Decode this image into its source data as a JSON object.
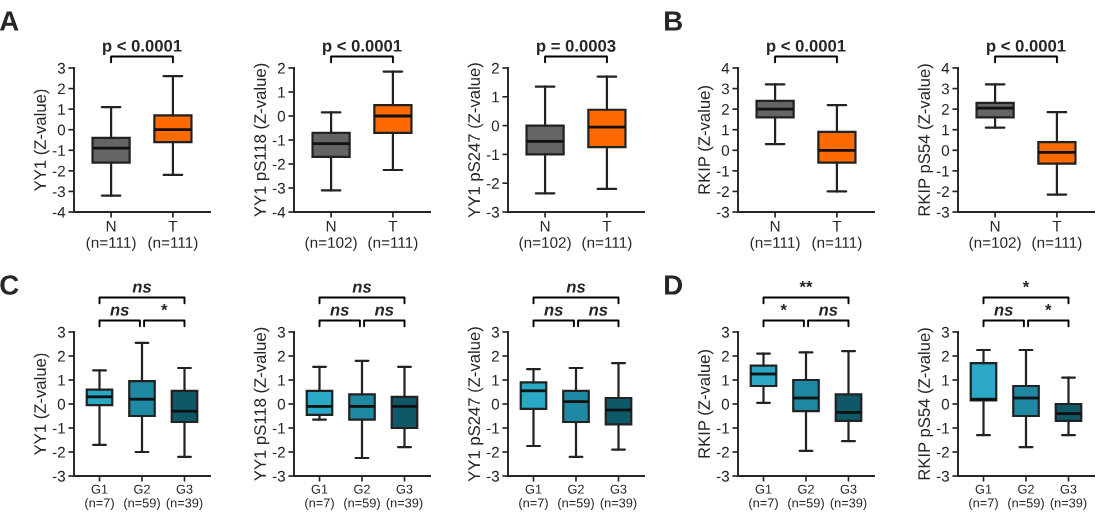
{
  "chart_data": [
    {
      "type": "box",
      "title": "A",
      "ylabel": "YY1 (Z-value)",
      "categories": [
        "N\n(n=111)",
        "T\n(n=111)"
      ],
      "colors": [
        "#646464",
        "#ff6a00"
      ],
      "ylim": [
        -4,
        3
      ],
      "yticks": [
        -4,
        -3,
        -2,
        -1,
        0,
        1,
        2,
        3
      ],
      "annotations": [
        "p < 0.0001"
      ],
      "boxes": [
        {
          "low": -3.2,
          "q1": -1.6,
          "median": -0.9,
          "q3": -0.4,
          "high": 1.1
        },
        {
          "low": -2.2,
          "q1": -0.6,
          "median": 0,
          "q3": 0.7,
          "high": 2.6
        }
      ]
    },
    {
      "type": "box",
      "ylabel": "YY1 pS118 (Z-value)",
      "categories": [
        "N\n(n=102)",
        "T\n(n=111)"
      ],
      "colors": [
        "#646464",
        "#ff6a00"
      ],
      "ylim": [
        -4,
        2
      ],
      "yticks": [
        -4,
        -3,
        -2,
        -1,
        0,
        1,
        2
      ],
      "annotations": [
        "p < 0.0001"
      ],
      "boxes": [
        {
          "low": -3.1,
          "q1": -1.7,
          "median": -1.15,
          "q3": -0.7,
          "high": 0.15
        },
        {
          "low": -2.25,
          "q1": -0.7,
          "median": 0,
          "q3": 0.45,
          "high": 1.85
        }
      ]
    },
    {
      "type": "box",
      "ylabel": "YY1 pS247 (Z-value)",
      "categories": [
        "N\n(n=102)",
        "T\n(n=111)"
      ],
      "colors": [
        "#646464",
        "#ff6a00"
      ],
      "ylim": [
        -3,
        2
      ],
      "yticks": [
        -3,
        -2,
        -1,
        0,
        1,
        2
      ],
      "annotations": [
        "p = 0.0003"
      ],
      "boxes": [
        {
          "low": -2.35,
          "q1": -1.0,
          "median": -0.55,
          "q3": 0,
          "high": 1.35
        },
        {
          "low": -2.2,
          "q1": -0.75,
          "median": -0.05,
          "q3": 0.55,
          "high": 1.7
        }
      ]
    },
    {
      "type": "box",
      "title": "B",
      "ylabel": "RKIP (Z-value)",
      "categories": [
        "N\n(n=111)",
        "T\n(n=111)"
      ],
      "colors": [
        "#646464",
        "#ff6a00"
      ],
      "ylim": [
        -3,
        4
      ],
      "yticks": [
        -3,
        -2,
        -1,
        0,
        1,
        2,
        3,
        4
      ],
      "annotations": [
        "p < 0.0001"
      ],
      "boxes": [
        {
          "low": 0.3,
          "q1": 1.6,
          "median": 2.0,
          "q3": 2.4,
          "high": 3.2
        },
        {
          "low": -2.0,
          "q1": -0.6,
          "median": 0,
          "q3": 0.9,
          "high": 2.2
        }
      ]
    },
    {
      "type": "box",
      "ylabel": "RKIP pS54 (Z-value)",
      "categories": [
        "N\n(n=102)",
        "T\n(n=111)"
      ],
      "colors": [
        "#646464",
        "#ff6a00"
      ],
      "ylim": [
        -3,
        4
      ],
      "yticks": [
        -3,
        -2,
        -1,
        0,
        1,
        2,
        3,
        4
      ],
      "annotations": [
        "p < 0.0001"
      ],
      "boxes": [
        {
          "low": 1.1,
          "q1": 1.6,
          "median": 2.05,
          "q3": 2.3,
          "high": 3.2
        },
        {
          "low": -2.15,
          "q1": -0.65,
          "median": -0.1,
          "q3": 0.4,
          "high": 1.85
        }
      ]
    },
    {
      "type": "box",
      "title": "C",
      "ylabel": "YY1 (Z-value)",
      "categories": [
        "G1\n(n=7)",
        "G2\n(n=59)",
        "G3\n(n=39)"
      ],
      "colors": [
        "#2ba8c6",
        "#1f88a2",
        "#0e5868"
      ],
      "ylim": [
        -3,
        3
      ],
      "yticks": [
        -3,
        -2,
        -1,
        0,
        1,
        2,
        3
      ],
      "annotations": [
        "ns",
        "ns",
        "*"
      ],
      "boxes": [
        {
          "low": -1.7,
          "q1": -0.05,
          "median": 0.3,
          "q3": 0.6,
          "high": 1.4
        },
        {
          "low": -2.0,
          "q1": -0.5,
          "median": 0.2,
          "q3": 0.95,
          "high": 2.55
        },
        {
          "low": -2.2,
          "q1": -0.75,
          "median": -0.3,
          "q3": 0.55,
          "high": 1.5
        }
      ]
    },
    {
      "type": "box",
      "ylabel": "YY1 pS118 (Z-value)",
      "categories": [
        "G1\n(n=7)",
        "G2\n(n=59)",
        "G3\n(n=39)"
      ],
      "colors": [
        "#2ba8c6",
        "#1f88a2",
        "#0e5868"
      ],
      "ylim": [
        -3,
        3
      ],
      "yticks": [
        -3,
        -2,
        -1,
        0,
        1,
        2,
        3
      ],
      "annotations": [
        "ns",
        "ns",
        "ns"
      ],
      "boxes": [
        {
          "low": -0.65,
          "q1": -0.45,
          "median": -0.1,
          "q3": 0.55,
          "high": 1.55
        },
        {
          "low": -2.25,
          "q1": -0.65,
          "median": -0.1,
          "q3": 0.4,
          "high": 1.8
        },
        {
          "low": -1.8,
          "q1": -1.0,
          "median": -0.1,
          "q3": 0.3,
          "high": 1.55
        }
      ]
    },
    {
      "type": "box",
      "ylabel": "YY1 pS247 (Z-value)",
      "categories": [
        "G1\n(n=7)",
        "G2\n(n=59)",
        "G3\n(n=39)"
      ],
      "colors": [
        "#2ba8c6",
        "#1f88a2",
        "#0e5868"
      ],
      "ylim": [
        -3,
        3
      ],
      "yticks": [
        -3,
        -2,
        -1,
        0,
        1,
        2,
        3
      ],
      "annotations": [
        "ns",
        "ns",
        "ns"
      ],
      "boxes": [
        {
          "low": -1.75,
          "q1": -0.2,
          "median": 0.55,
          "q3": 0.9,
          "high": 1.45
        },
        {
          "low": -2.2,
          "q1": -0.75,
          "median": 0.1,
          "q3": 0.55,
          "high": 1.5
        },
        {
          "low": -1.9,
          "q1": -0.85,
          "median": -0.25,
          "q3": 0.25,
          "high": 1.7
        }
      ]
    },
    {
      "type": "box",
      "title": "D",
      "ylabel": "RKIP (Z-value)",
      "categories": [
        "G1\n(n=7)",
        "G2\n(n=59)",
        "G3\n(n=39)"
      ],
      "colors": [
        "#2ba8c6",
        "#1f88a2",
        "#0e5868"
      ],
      "ylim": [
        -3,
        3
      ],
      "yticks": [
        -3,
        -2,
        -1,
        0,
        1,
        2,
        3
      ],
      "annotations": [
        "**",
        "*",
        "ns"
      ],
      "boxes": [
        {
          "low": 0.05,
          "q1": 0.75,
          "median": 1.25,
          "q3": 1.6,
          "high": 2.1
        },
        {
          "low": -1.95,
          "q1": -0.3,
          "median": 0.25,
          "q3": 1.0,
          "high": 2.15
        },
        {
          "low": -1.55,
          "q1": -0.7,
          "median": -0.35,
          "q3": 0.4,
          "high": 2.2
        }
      ]
    },
    {
      "type": "box",
      "ylabel": "RKIP pS54 (Z-value)",
      "categories": [
        "G1\n(n=7)",
        "G2\n(n=59)",
        "G3\n(n=39)"
      ],
      "colors": [
        "#2ba8c6",
        "#1f88a2",
        "#0e5868"
      ],
      "ylim": [
        -3,
        3
      ],
      "yticks": [
        -3,
        -2,
        -1,
        0,
        1,
        2,
        3
      ],
      "annotations": [
        "*",
        "ns",
        "*"
      ],
      "boxes": [
        {
          "low": -1.3,
          "q1": 0.15,
          "median": 0.2,
          "q3": 1.7,
          "high": 2.25
        },
        {
          "low": -1.8,
          "q1": -0.5,
          "median": 0.25,
          "q3": 0.75,
          "high": 2.25
        },
        {
          "low": -1.3,
          "q1": -0.7,
          "median": -0.4,
          "q3": 0.0,
          "high": 1.1
        }
      ]
    }
  ]
}
